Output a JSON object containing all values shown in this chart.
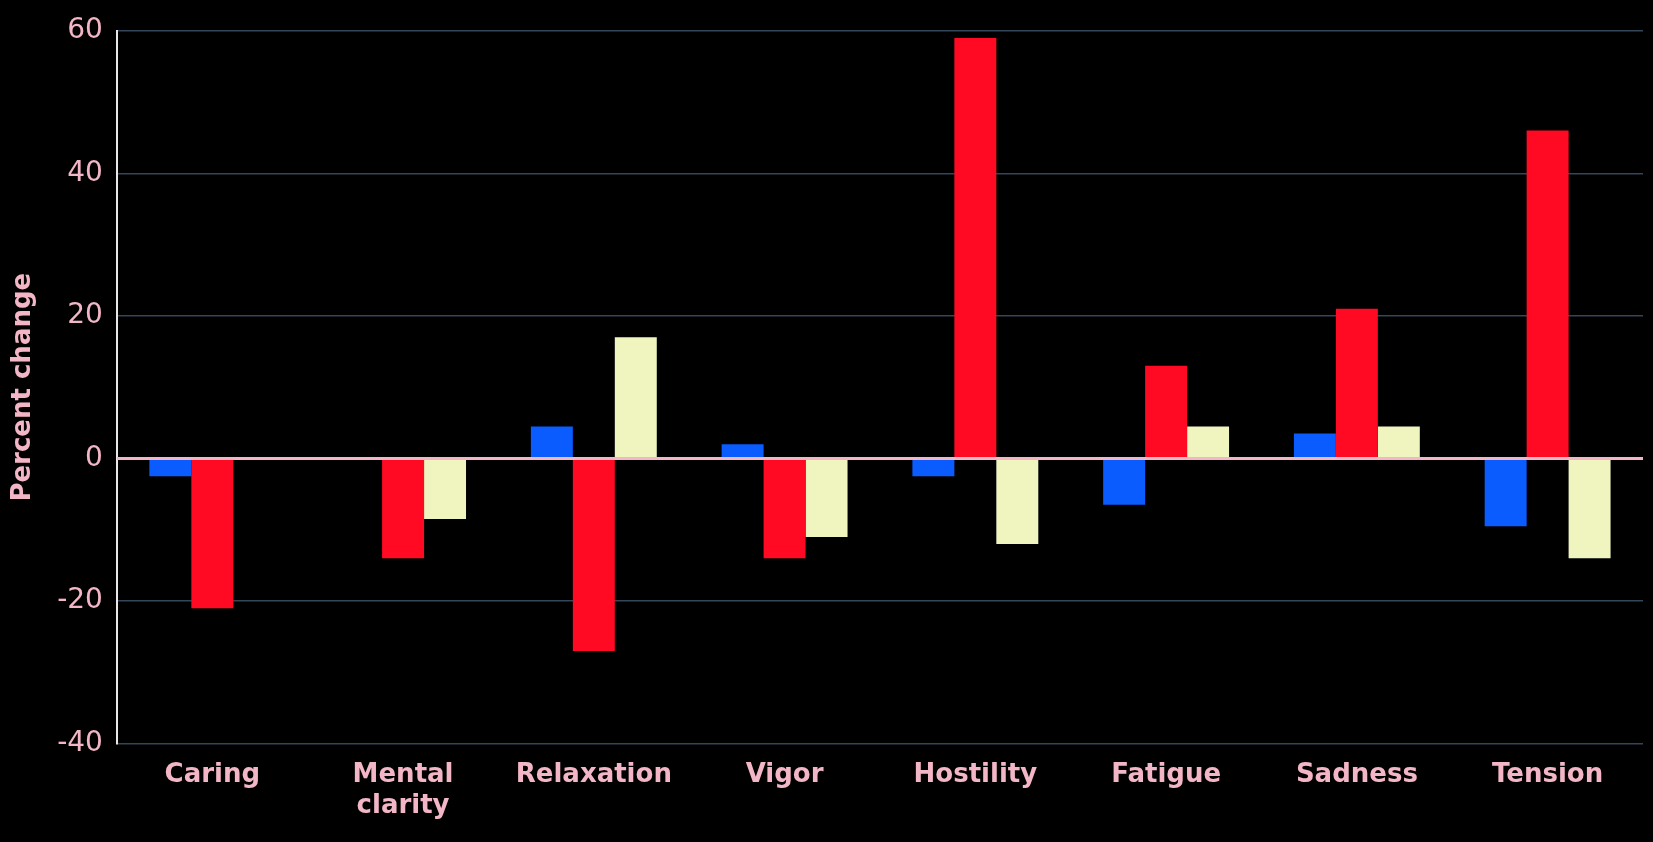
{
  "chart_data": {
    "type": "bar",
    "ylabel": "Percent change",
    "categories": [
      "Caring",
      "Mental clarity",
      "Relaxation",
      "Vigor",
      "Hostility",
      "Fatigue",
      "Sadness",
      "Tension"
    ],
    "series": [
      {
        "color": "#0a5cff",
        "values": [
          -2.5,
          null,
          4.5,
          2,
          -2.5,
          -6.5,
          3.5,
          -9.5
        ]
      },
      {
        "color": "#ff0a22",
        "values": [
          -21,
          -14,
          -27,
          -14,
          59,
          13,
          21,
          46
        ]
      },
      {
        "color": "#f0f5c0",
        "values": [
          null,
          -8.5,
          17,
          -11,
          -12,
          4.5,
          4.5,
          -14
        ]
      }
    ],
    "ylim": [
      -40,
      60
    ],
    "yticks": [
      -40,
      -20,
      0,
      20,
      40,
      60
    ],
    "grid": "y",
    "legend": false,
    "ref_lines": [
      {
        "axis": "y",
        "value": 0,
        "color": "#f2b6c6"
      }
    ]
  }
}
